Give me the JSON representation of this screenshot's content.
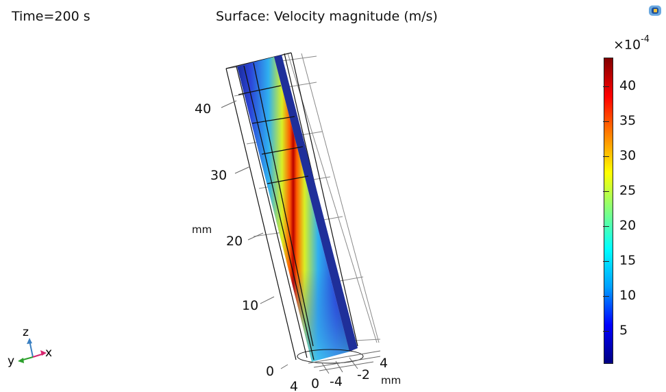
{
  "header": {
    "time_label": "Time=200 s",
    "plot_title": "Surface: Velocity magnitude (m/s)"
  },
  "axes": {
    "z_ticks": [
      "0",
      "10",
      "20",
      "30",
      "40"
    ],
    "z_unit": "mm",
    "x_ticks": [
      "4",
      "0",
      "-4"
    ],
    "y_ticks": [
      "-2",
      "4"
    ],
    "xy_unit": "mm"
  },
  "colorbar": {
    "multiplier_base": "×10",
    "multiplier_exp": "-4",
    "labels": [
      "40",
      "35",
      "30",
      "25",
      "20",
      "15",
      "10",
      "5"
    ],
    "colormap": [
      "#000080",
      "#0000ff",
      "#00a0ff",
      "#00ffff",
      "#80ff80",
      "#ffff00",
      "#ff8000",
      "#ff0000",
      "#800000"
    ]
  },
  "triad": {
    "z": "z",
    "y": "y",
    "x": "x",
    "z_color": "#3a7fc1",
    "y_color": "#2ca02c",
    "x_color": "#d6246e"
  },
  "logo_icon": "comsol-logo-icon"
}
